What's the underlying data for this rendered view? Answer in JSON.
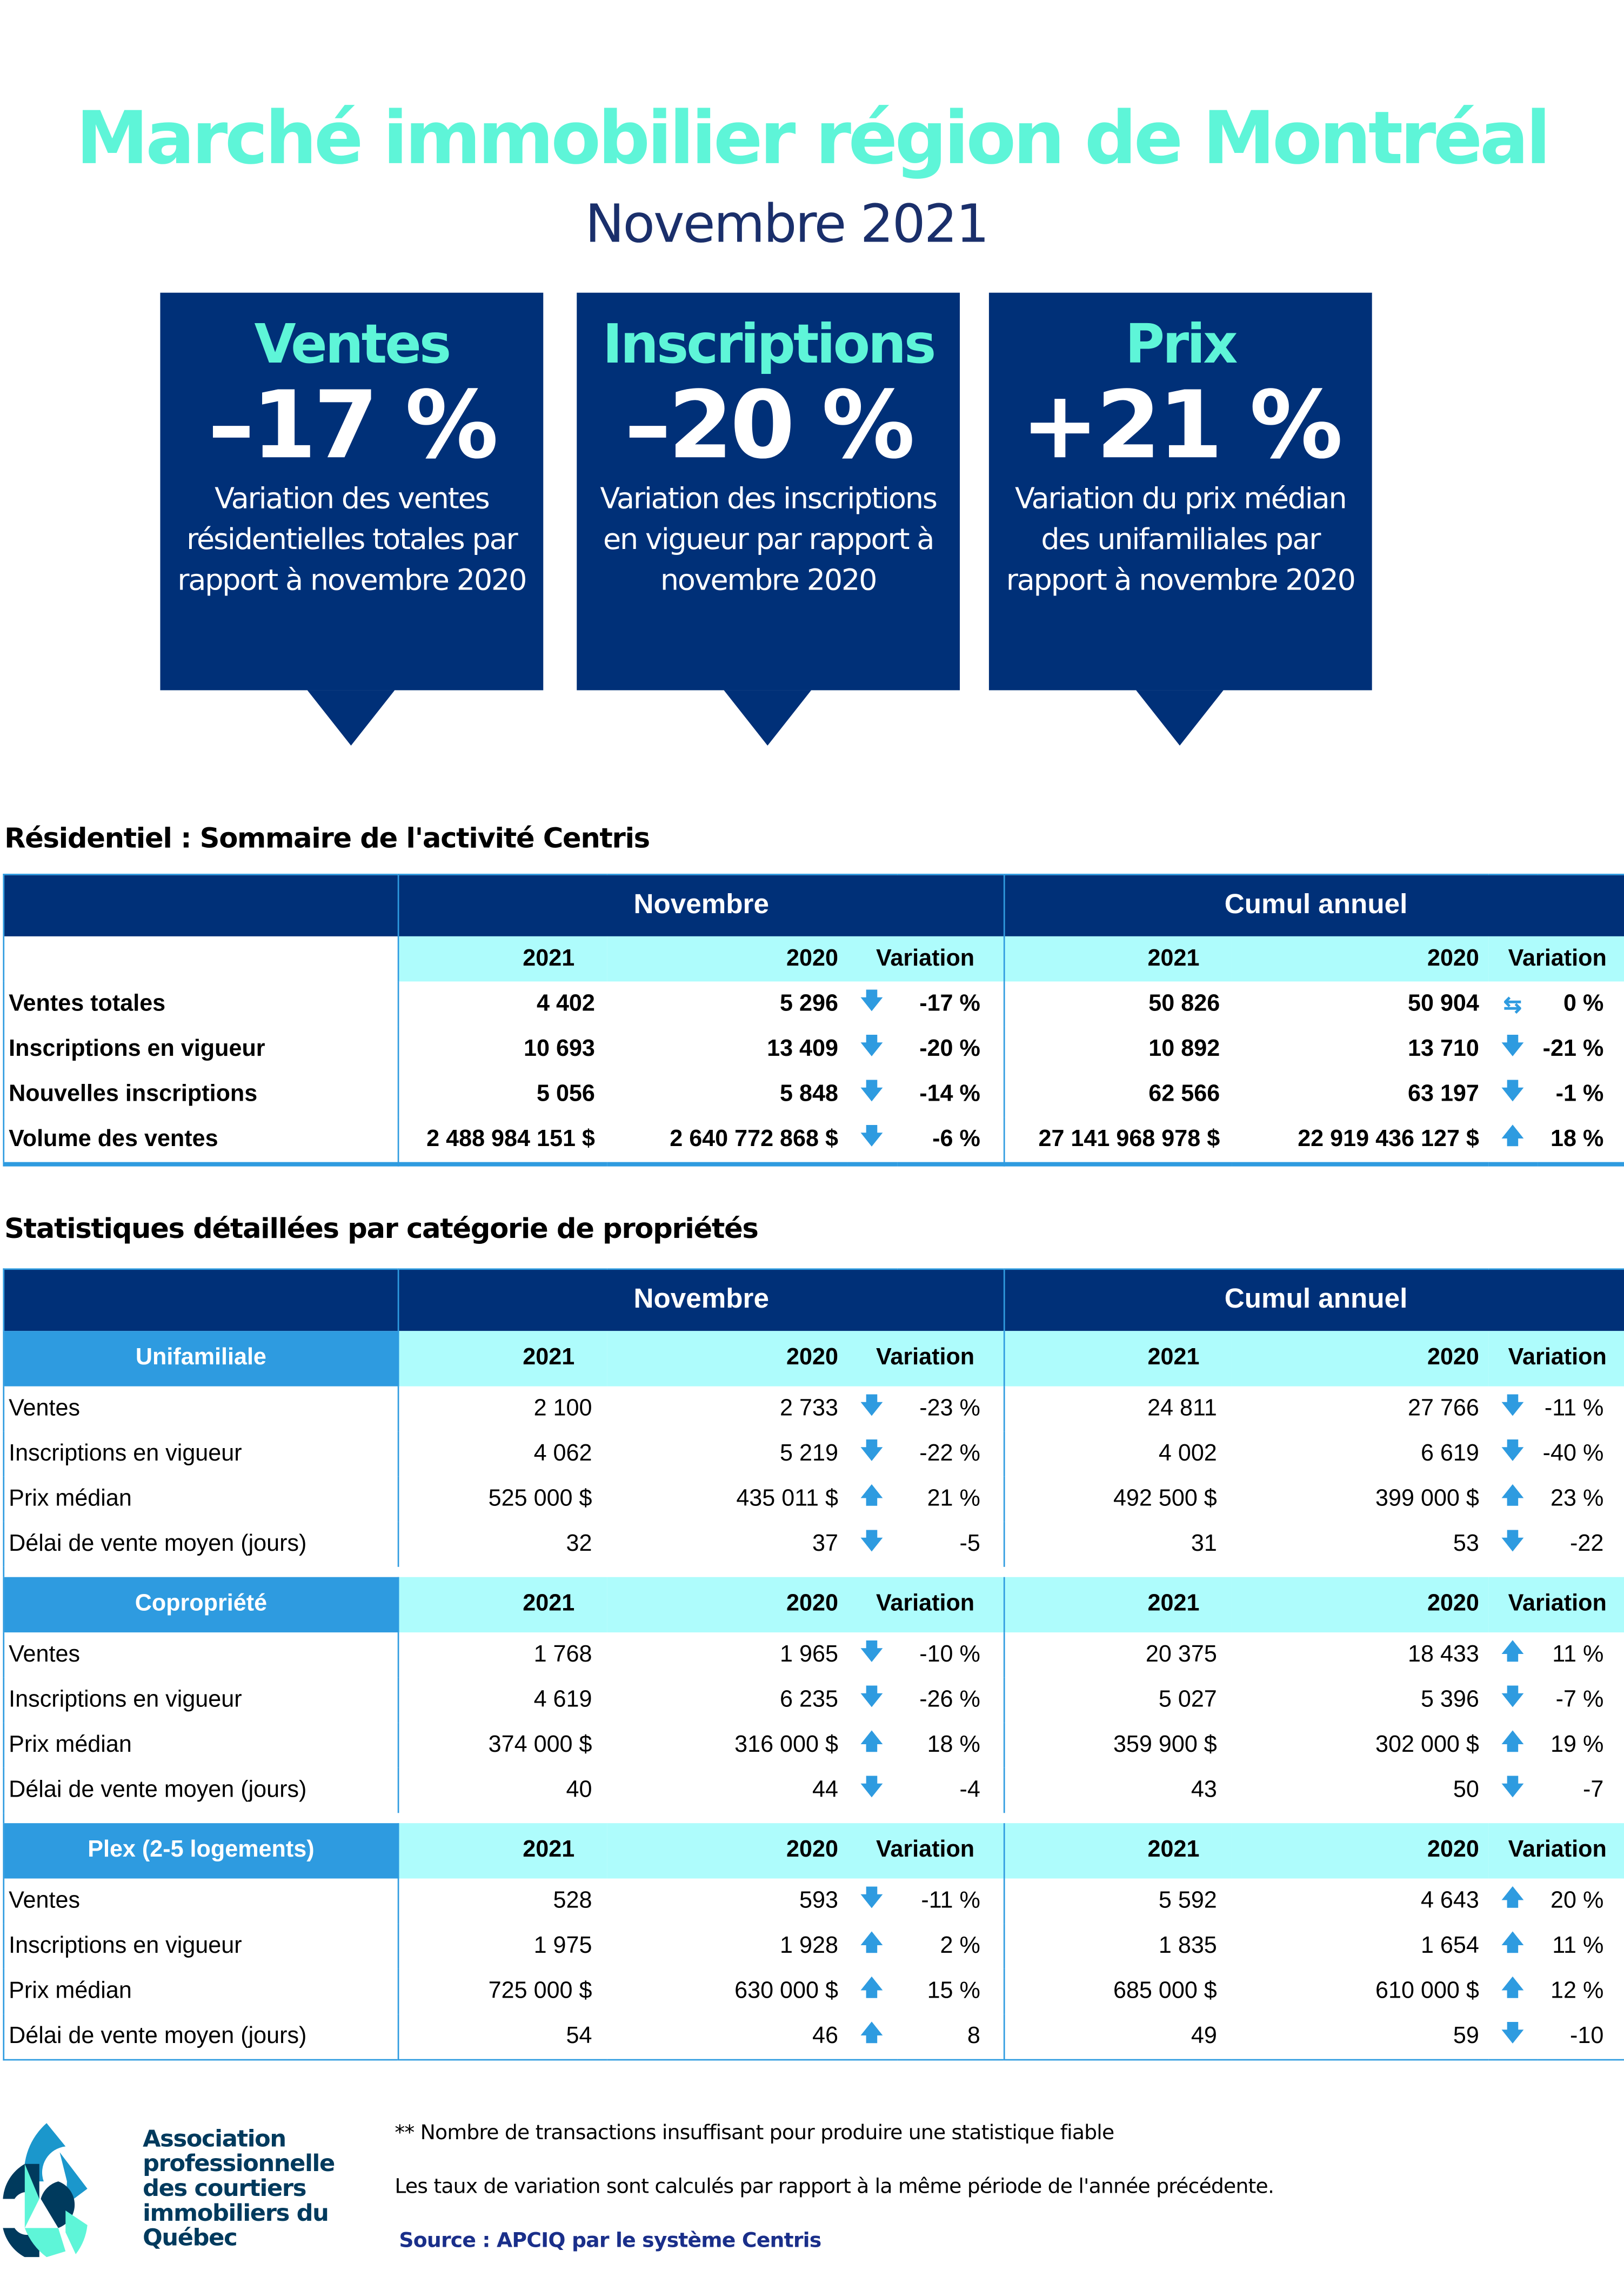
{
  "colors": {
    "navy": "#003078",
    "aqua": "#5ef5d8",
    "cyan": "#aefcfc",
    "blue": "#2e9be0",
    "dark": "#1a2f6b"
  },
  "title": "Marché immobilier région de Montréal",
  "subtitle": "Novembre 2021",
  "kpis": [
    {
      "heading": "Ventes",
      "value": "–17 %",
      "desc": "Variation des ventes résidentielles totales par rapport à novembre 2020"
    },
    {
      "heading": "Inscriptions",
      "value": "–20 %",
      "desc": "Variation des inscriptions en vigueur par rapport à novembre 2020"
    },
    {
      "heading": "Prix",
      "value": "+21 %",
      "desc": "Variation du prix médian des unifamiliales par rapport à novembre 2020"
    }
  ],
  "summary": {
    "title": "Résidentiel : Sommaire de l'activité Centris",
    "group1": "Novembre",
    "group2": "Cumul annuel",
    "cols": [
      "2021",
      "2020",
      "Variation",
      "2021",
      "2020",
      "Variation"
    ],
    "rows": [
      {
        "label": "Ventes totales",
        "cells": [
          "4 402",
          "5 296",
          "down",
          "-17 %",
          "50 826",
          "50 904",
          "flat",
          "0 %"
        ]
      },
      {
        "label": "Inscriptions en vigueur",
        "cells": [
          "10 693",
          "13 409",
          "down",
          "-20 %",
          "10 892",
          "13 710",
          "down",
          "-21 %"
        ]
      },
      {
        "label": "Nouvelles inscriptions",
        "cells": [
          "5 056",
          "5 848",
          "down",
          "-14 %",
          "62 566",
          "63 197",
          "down",
          "-1 %"
        ]
      },
      {
        "label": "Volume des ventes",
        "cells": [
          "2 488 984 151  $",
          "2 640 772 868  $",
          "down",
          "-6 %",
          "27 141 968 978  $",
          "22 919 436 127  $",
          "up",
          "18 %"
        ]
      }
    ]
  },
  "detail": {
    "title": "Statistiques détaillées par catégorie de propriétés",
    "group1": "Novembre",
    "group2": "Cumul annuel",
    "categories": [
      {
        "name": "Unifamiliale",
        "cols": [
          "2021",
          "2020",
          "Variation",
          "2021",
          "2020",
          "Variation"
        ],
        "rows": [
          {
            "label": "Ventes",
            "cells": [
              "2 100",
              "2 733",
              "down",
              "-23 %",
              "24 811",
              "27 766",
              "down",
              "-11 %"
            ]
          },
          {
            "label": "Inscriptions en vigueur",
            "cells": [
              "4 062",
              "5 219",
              "down",
              "-22 %",
              "4 002",
              "6 619",
              "down",
              "-40 %"
            ]
          },
          {
            "label": "Prix médian",
            "cells": [
              "525 000 $",
              "435 011 $",
              "up",
              "21 %",
              "492 500 $",
              "399 000 $",
              "up",
              "23 %"
            ]
          },
          {
            "label": "Délai de vente moyen (jours)",
            "cells": [
              "32",
              "37",
              "down",
              "-5",
              "31",
              "53",
              "down",
              "-22"
            ]
          }
        ]
      },
      {
        "name": "Copropriété",
        "cols": [
          "2021",
          "2020",
          "Variation",
          "2021",
          "2020",
          "Variation"
        ],
        "rows": [
          {
            "label": "Ventes",
            "cells": [
              "1 768",
              "1 965",
              "down",
              "-10 %",
              "20 375",
              "18 433",
              "up",
              "11 %"
            ]
          },
          {
            "label": "Inscriptions en vigueur",
            "cells": [
              "4 619",
              "6 235",
              "down",
              "-26 %",
              "5 027",
              "5 396",
              "down",
              "-7 %"
            ]
          },
          {
            "label": "Prix médian",
            "cells": [
              "374 000 $",
              "316 000 $",
              "up",
              "18 %",
              "359 900 $",
              "302 000 $",
              "up",
              "19 %"
            ]
          },
          {
            "label": "Délai de vente moyen (jours)",
            "cells": [
              "40",
              "44",
              "down",
              "-4",
              "43",
              "50",
              "down",
              "-7"
            ]
          }
        ]
      },
      {
        "name": "Plex (2-5 logements)",
        "cols": [
          "2021",
          "2020",
          "Variation",
          "2021",
          "2020",
          "Variation"
        ],
        "rows": [
          {
            "label": "Ventes",
            "cells": [
              "528",
              "593",
              "down",
              "-11 %",
              "5 592",
              "4 643",
              "up",
              "20 %"
            ]
          },
          {
            "label": "Inscriptions en vigueur",
            "cells": [
              "1 975",
              "1 928",
              "up",
              "2 %",
              "1 835",
              "1 654",
              "up",
              "11 %"
            ]
          },
          {
            "label": "Prix médian",
            "cells": [
              "725 000 $",
              "630 000 $",
              "up",
              "15 %",
              "685 000 $",
              "610 000 $",
              "up",
              "12 %"
            ]
          },
          {
            "label": "Délai de vente moyen (jours)",
            "cells": [
              "54",
              "46",
              "up",
              "8",
              "49",
              "59",
              "down",
              "-10"
            ]
          }
        ]
      }
    ]
  },
  "footer": {
    "logo_text": "Association professionnelle des courtiers immobiliers du Québec",
    "note1": "** Nombre de transactions insuffisant pour produire une statistique fiable",
    "note2": "Les taux de variation sont calculés par rapport à la même période de l'année précédente.",
    "source": "Source : APCIQ par le système Centris"
  }
}
